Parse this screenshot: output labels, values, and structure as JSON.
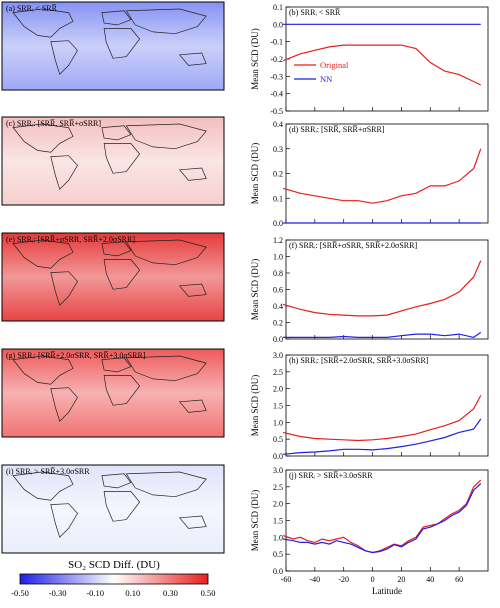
{
  "colorbar": {
    "title": "SO₂ SCD Diff. (DU)",
    "ticks": [
      "-0.50",
      "-0.30",
      "-0.10",
      "0.10",
      "0.30",
      "0.50"
    ],
    "colors": {
      "neg": "#1f1fe6",
      "mid": "#ffffff",
      "pos": "#e61f1f"
    }
  },
  "maps": [
    {
      "label": "(a) SRRᵢ < SRR̅",
      "tint": "#7f8cf2",
      "strength": 0.75
    },
    {
      "label": "(c) SRRᵢ: [SRR̅, SRR̅+σSRR]",
      "tint": "#f0a8a8",
      "strength": 0.55
    },
    {
      "label": "(e) SRRᵢ: [SRR̅+σSRR, SRR̅+2.0σSRR]",
      "tint": "#e63a3a",
      "strength": 0.95
    },
    {
      "label": "(g) SRRᵢ: [SRR̅+2.0σSRR, SRR̅+3.0σSRR]",
      "tint": "#ee5a5a",
      "strength": 0.85
    },
    {
      "label": "(i) SRRᵢ > SRR̅+3.0σSRR",
      "tint": "#c7cdf5",
      "strength": 0.35
    }
  ],
  "chart_data": [
    {
      "type": "line",
      "title": "(b) SRRᵢ < SRR̅",
      "ylabel": "Mean SCD (DU)",
      "xlabel": "",
      "xlim": [
        -60,
        80
      ],
      "ylim": [
        -0.5,
        0.1
      ],
      "yticks": [
        "0.1",
        "0.0",
        "-0.1",
        "-0.2",
        "-0.3",
        "-0.4",
        "-0.5"
      ],
      "legend": {
        "position": "bottom-left",
        "entries": [
          "Original",
          "NN"
        ]
      },
      "x": [
        -62,
        -50,
        -40,
        -30,
        -20,
        -10,
        0,
        10,
        20,
        30,
        40,
        50,
        60,
        70,
        75
      ],
      "series": [
        {
          "name": "Original",
          "color": "#e61f1f",
          "values": [
            -0.21,
            -0.17,
            -0.15,
            -0.13,
            -0.12,
            -0.12,
            -0.12,
            -0.12,
            -0.12,
            -0.14,
            -0.22,
            -0.27,
            -0.29,
            -0.33,
            -0.35
          ]
        },
        {
          "name": "NN",
          "color": "#1f1fe6",
          "values": [
            0.0,
            0.0,
            0.0,
            0.0,
            0.0,
            0.0,
            0.0,
            0.0,
            0.0,
            0.0,
            0.0,
            0.0,
            0.0,
            0.0,
            0.0
          ]
        }
      ]
    },
    {
      "type": "line",
      "title": "(d) SRRᵢ: [SRR̅, SRR̅+σSRR]",
      "ylabel": "Mean SCD (DU)",
      "xlabel": "",
      "xlim": [
        -60,
        80
      ],
      "ylim": [
        0,
        0.4
      ],
      "yticks": [
        "0.4",
        "0.3",
        "0.2",
        "0.1",
        "0.0"
      ],
      "x": [
        -62,
        -50,
        -40,
        -30,
        -20,
        -10,
        0,
        10,
        20,
        30,
        40,
        50,
        60,
        70,
        75
      ],
      "series": [
        {
          "name": "Original",
          "color": "#e61f1f",
          "values": [
            0.14,
            0.12,
            0.11,
            0.1,
            0.09,
            0.09,
            0.08,
            0.09,
            0.11,
            0.12,
            0.15,
            0.15,
            0.17,
            0.22,
            0.3
          ]
        },
        {
          "name": "NN",
          "color": "#1f1fe6",
          "values": [
            0.0,
            0.0,
            0.0,
            0.0,
            0.0,
            0.0,
            0.0,
            0.0,
            0.0,
            0.0,
            0.0,
            0.0,
            0.0,
            0.0,
            0.0
          ]
        }
      ]
    },
    {
      "type": "line",
      "title": "(f) SRRᵢ: [SRR̅+σSRR, SRR̅+2.0σSRR]",
      "ylabel": "Mean SCD (DU)",
      "xlabel": "",
      "xlim": [
        -60,
        80
      ],
      "ylim": [
        0,
        1.2
      ],
      "yticks": [
        "1.2",
        "1.0",
        "0.8",
        "0.6",
        "0.4",
        "0.2",
        "0.0"
      ],
      "x": [
        -62,
        -50,
        -40,
        -30,
        -20,
        -10,
        0,
        10,
        20,
        30,
        40,
        50,
        60,
        70,
        75
      ],
      "series": [
        {
          "name": "Original",
          "color": "#e61f1f",
          "values": [
            0.42,
            0.36,
            0.32,
            0.3,
            0.29,
            0.28,
            0.28,
            0.29,
            0.34,
            0.39,
            0.43,
            0.48,
            0.57,
            0.75,
            0.95
          ]
        },
        {
          "name": "NN",
          "color": "#1f1fe6",
          "values": [
            0.02,
            0.02,
            0.02,
            0.02,
            0.03,
            0.02,
            0.02,
            0.02,
            0.04,
            0.06,
            0.06,
            0.04,
            0.06,
            0.02,
            0.08
          ]
        }
      ]
    },
    {
      "type": "line",
      "title": "(h) SRRᵢ: [SRR̅+2.0σSRR, SRR̅+3.0σSRR]",
      "ylabel": "Mean SCD (DU)",
      "xlabel": "",
      "xlim": [
        -60,
        80
      ],
      "ylim": [
        0,
        3.0
      ],
      "yticks": [
        "3.0",
        "2.5",
        "2.0",
        "1.5",
        "1.0",
        "0.5",
        "0.0"
      ],
      "x": [
        -62,
        -50,
        -40,
        -30,
        -20,
        -10,
        0,
        10,
        20,
        30,
        40,
        50,
        60,
        70,
        75
      ],
      "series": [
        {
          "name": "Original",
          "color": "#e61f1f",
          "values": [
            0.7,
            0.58,
            0.52,
            0.5,
            0.48,
            0.46,
            0.48,
            0.52,
            0.58,
            0.65,
            0.78,
            0.9,
            1.05,
            1.4,
            1.8
          ]
        },
        {
          "name": "NN",
          "color": "#1f1fe6",
          "values": [
            0.05,
            0.1,
            0.12,
            0.15,
            0.2,
            0.2,
            0.18,
            0.22,
            0.28,
            0.35,
            0.45,
            0.55,
            0.7,
            0.8,
            1.1
          ]
        }
      ]
    },
    {
      "type": "line",
      "title": "(j) SRRᵢ > SRR̅+3.0σSRR",
      "ylabel": "Mean SCD (DU)",
      "xlabel": "Latitude",
      "xlim": [
        -60,
        80
      ],
      "ylim": [
        0,
        3.0
      ],
      "yticks": [
        "3.0",
        "2.5",
        "2.0",
        "1.5",
        "1.0",
        "0.5",
        "0.0"
      ],
      "xticks": [
        "-60",
        "-40",
        "-20",
        "0",
        "20",
        "40",
        "60"
      ],
      "x": [
        -62,
        -55,
        -50,
        -45,
        -40,
        -35,
        -30,
        -25,
        -20,
        -15,
        -10,
        -5,
        0,
        5,
        10,
        15,
        20,
        25,
        30,
        35,
        40,
        45,
        50,
        55,
        60,
        65,
        70,
        75
      ],
      "series": [
        {
          "name": "Original",
          "color": "#e61f1f",
          "values": [
            1.05,
            0.95,
            1.0,
            0.9,
            0.85,
            0.95,
            0.9,
            0.95,
            1.0,
            0.85,
            0.75,
            0.6,
            0.55,
            0.6,
            0.7,
            0.8,
            0.75,
            0.9,
            1.0,
            1.3,
            1.35,
            1.4,
            1.55,
            1.7,
            1.8,
            2.0,
            2.5,
            2.7
          ]
        },
        {
          "name": "NN",
          "color": "#1f1fe6",
          "values": [
            0.95,
            0.9,
            0.85,
            0.85,
            0.8,
            0.85,
            0.8,
            0.9,
            0.85,
            0.8,
            0.7,
            0.6,
            0.55,
            0.58,
            0.65,
            0.78,
            0.72,
            0.85,
            0.95,
            1.25,
            1.3,
            1.4,
            1.5,
            1.65,
            1.75,
            1.95,
            2.4,
            2.6
          ]
        }
      ]
    }
  ]
}
